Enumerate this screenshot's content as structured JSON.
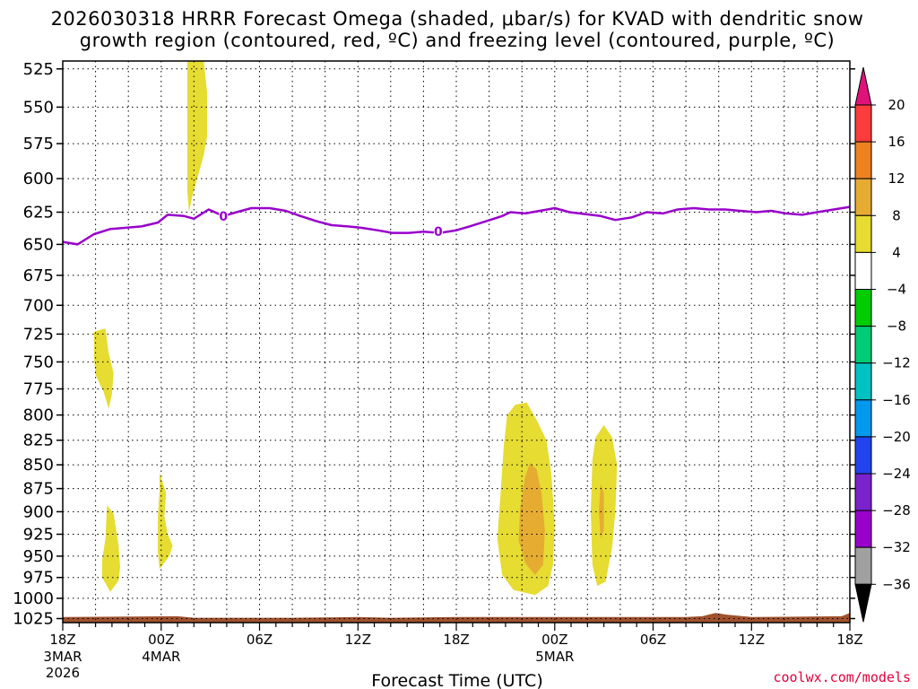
{
  "title_line1": "2026030318 HRRR Forecast Omega (shaded, μbar/s) for KVAD with dendritic snow",
  "title_line2": "growth region (contoured, red, ºC) and freezing level (contoured, purple, ºC)",
  "credit": "coolwx.com/models",
  "chart_data": {
    "type": "area",
    "xlabel": "Forecast Time (UTC)",
    "x_hours_range": [
      0,
      48
    ],
    "y_levels_hPa": [
      525,
      550,
      575,
      600,
      625,
      650,
      675,
      700,
      725,
      750,
      775,
      800,
      825,
      850,
      875,
      900,
      925,
      950,
      975,
      1000,
      1025
    ],
    "y_range_hPa": [
      520,
      1030
    ],
    "y_scale": "log-pressure",
    "x_ticks": [
      {
        "hour": 0,
        "label": "18Z",
        "sub1": "3MAR",
        "sub2": "2026"
      },
      {
        "hour": 6,
        "label": "00Z",
        "sub1": "4MAR",
        "sub2": ""
      },
      {
        "hour": 12,
        "label": "06Z",
        "sub1": "",
        "sub2": ""
      },
      {
        "hour": 18,
        "label": "12Z",
        "sub1": "",
        "sub2": ""
      },
      {
        "hour": 24,
        "label": "18Z",
        "sub1": "",
        "sub2": ""
      },
      {
        "hour": 30,
        "label": "00Z",
        "sub1": "5MAR",
        "sub2": ""
      },
      {
        "hour": 36,
        "label": "06Z",
        "sub1": "",
        "sub2": ""
      },
      {
        "hour": 42,
        "label": "12Z",
        "sub1": "",
        "sub2": ""
      },
      {
        "hour": 48,
        "label": "18Z",
        "sub1": "",
        "sub2": ""
      }
    ],
    "grid": true,
    "freezing_level": {
      "label": "0",
      "color": "#9900cc",
      "points": [
        [
          0,
          648
        ],
        [
          0.9,
          650
        ],
        [
          1.9,
          642
        ],
        [
          2.9,
          638
        ],
        [
          4.8,
          636
        ],
        [
          5.8,
          633
        ],
        [
          6.4,
          627
        ],
        [
          7.4,
          628
        ],
        [
          8.0,
          630
        ],
        [
          8.9,
          623
        ],
        [
          9.8,
          628
        ],
        [
          10.6,
          625
        ],
        [
          11.5,
          622
        ],
        [
          12.6,
          622
        ],
        [
          13.6,
          624
        ],
        [
          14.5,
          628
        ],
        [
          15.5,
          632
        ],
        [
          16.4,
          635
        ],
        [
          17.4,
          636
        ],
        [
          18.2,
          637
        ],
        [
          19.2,
          639
        ],
        [
          20.1,
          641
        ],
        [
          21.1,
          641
        ],
        [
          22.0,
          640
        ],
        [
          23.0,
          641
        ],
        [
          24.0,
          639
        ],
        [
          24.8,
          636
        ],
        [
          25.8,
          632
        ],
        [
          26.8,
          628
        ],
        [
          27.3,
          625
        ],
        [
          28.2,
          626
        ],
        [
          29.1,
          624
        ],
        [
          30.0,
          622
        ],
        [
          30.9,
          625
        ],
        [
          32.8,
          628
        ],
        [
          33.7,
          631
        ],
        [
          34.7,
          629
        ],
        [
          35.6,
          625
        ],
        [
          36.6,
          626
        ],
        [
          37.5,
          623
        ],
        [
          38.5,
          622
        ],
        [
          39.4,
          623
        ],
        [
          40.4,
          623
        ],
        [
          41.3,
          624
        ],
        [
          42.3,
          625
        ],
        [
          43.2,
          624
        ],
        [
          44.1,
          626
        ],
        [
          45.1,
          627
        ],
        [
          46.0,
          625
        ],
        [
          48.0,
          621
        ]
      ],
      "label_positions": [
        [
          9.8,
          628
        ],
        [
          22.9,
          640
        ]
      ]
    },
    "omega_areas": [
      {
        "level": "4 to 8",
        "color": "#e6dc32",
        "points": [
          [
            7.6,
            520
          ],
          [
            8.6,
            520
          ],
          [
            8.8,
            540
          ],
          [
            8.8,
            570
          ],
          [
            8.6,
            583
          ],
          [
            8.2,
            600
          ],
          [
            7.9,
            613
          ],
          [
            7.7,
            625
          ],
          [
            7.6,
            610
          ],
          [
            7.6,
            580
          ],
          [
            7.6,
            550
          ]
        ]
      },
      {
        "level": "4 to 8",
        "color": "#e6dc32",
        "points": [
          [
            1.9,
            723
          ],
          [
            2.6,
            720
          ],
          [
            2.8,
            742
          ],
          [
            3.1,
            760
          ],
          [
            3.0,
            780
          ],
          [
            2.8,
            794
          ],
          [
            2.5,
            778
          ],
          [
            2.0,
            762
          ],
          [
            1.9,
            745
          ]
        ]
      },
      {
        "level": "4 to 8",
        "color": "#e6dc32",
        "points": [
          [
            2.7,
            893
          ],
          [
            3.1,
            902
          ],
          [
            3.4,
            937
          ],
          [
            3.5,
            963
          ],
          [
            3.4,
            979
          ],
          [
            2.9,
            992
          ],
          [
            2.4,
            975
          ],
          [
            2.4,
            955
          ],
          [
            2.6,
            930
          ]
        ]
      },
      {
        "level": "4 to 8",
        "color": "#e6dc32",
        "points": [
          [
            5.9,
            858
          ],
          [
            6.3,
            880
          ],
          [
            6.2,
            905
          ],
          [
            6.4,
            925
          ],
          [
            6.7,
            938
          ],
          [
            6.5,
            950
          ],
          [
            5.9,
            965
          ],
          [
            5.8,
            945
          ],
          [
            5.8,
            905
          ],
          [
            5.9,
            878
          ]
        ]
      },
      {
        "level": "4 to 8",
        "color": "#e6dc32",
        "points": [
          [
            27.1,
            800
          ],
          [
            27.6,
            790
          ],
          [
            28.3,
            788
          ],
          [
            28.9,
            805
          ],
          [
            29.5,
            825
          ],
          [
            29.8,
            860
          ],
          [
            30.0,
            915
          ],
          [
            29.9,
            960
          ],
          [
            29.6,
            985
          ],
          [
            28.8,
            996
          ],
          [
            27.5,
            990
          ],
          [
            26.8,
            972
          ],
          [
            26.5,
            930
          ],
          [
            26.7,
            880
          ],
          [
            26.9,
            830
          ]
        ]
      },
      {
        "level": "8 to 12",
        "color": "#e6ac32",
        "points": [
          [
            28.5,
            848
          ],
          [
            28.9,
            855
          ],
          [
            29.2,
            880
          ],
          [
            29.4,
            920
          ],
          [
            29.3,
            960
          ],
          [
            28.8,
            972
          ],
          [
            28.2,
            958
          ],
          [
            27.8,
            932
          ],
          [
            27.9,
            895
          ],
          [
            28.2,
            862
          ]
        ]
      },
      {
        "level": "4 to 8",
        "color": "#e6dc32",
        "points": [
          [
            32.5,
            822
          ],
          [
            33.0,
            810
          ],
          [
            33.5,
            822
          ],
          [
            33.8,
            850
          ],
          [
            33.7,
            900
          ],
          [
            33.5,
            940
          ],
          [
            33.1,
            980
          ],
          [
            32.6,
            985
          ],
          [
            32.3,
            960
          ],
          [
            32.2,
            900
          ],
          [
            32.3,
            845
          ]
        ]
      },
      {
        "level": "8 to 12",
        "color": "#e6ac32",
        "points": [
          [
            32.8,
            870
          ],
          [
            33.0,
            880
          ],
          [
            33.0,
            920
          ],
          [
            32.8,
            930
          ],
          [
            32.7,
            900
          ]
        ]
      }
    ],
    "terrain": {
      "color": "#a0522d",
      "top_points": [
        [
          0,
          1023
        ],
        [
          7,
          1022
        ],
        [
          8,
          1024
        ],
        [
          14,
          1024
        ],
        [
          18,
          1023
        ],
        [
          20,
          1024
        ],
        [
          24,
          1023
        ],
        [
          38,
          1023
        ],
        [
          39,
          1022
        ],
        [
          39.8,
          1018
        ],
        [
          40.5,
          1020
        ],
        [
          42,
          1023
        ],
        [
          47.5,
          1022
        ],
        [
          48,
          1018
        ]
      ]
    },
    "colorbar": {
      "labels": [
        "20",
        "16",
        "12",
        "8",
        "4",
        "−4",
        "−8",
        "−12",
        "−16",
        "−20",
        "−24",
        "−28",
        "−32",
        "−36"
      ],
      "top_color": "#e0127a",
      "colors": [
        "#ff3c3c",
        "#ee8220",
        "#e6ac32",
        "#e6dc32",
        "#ffffff",
        "#00cc00",
        "#00cc77",
        "#00c2c2",
        "#0099ee",
        "#2244ee",
        "#7a22cc",
        "#9900cc",
        "#a0a0a0"
      ],
      "bottom_color": "#000000"
    }
  }
}
